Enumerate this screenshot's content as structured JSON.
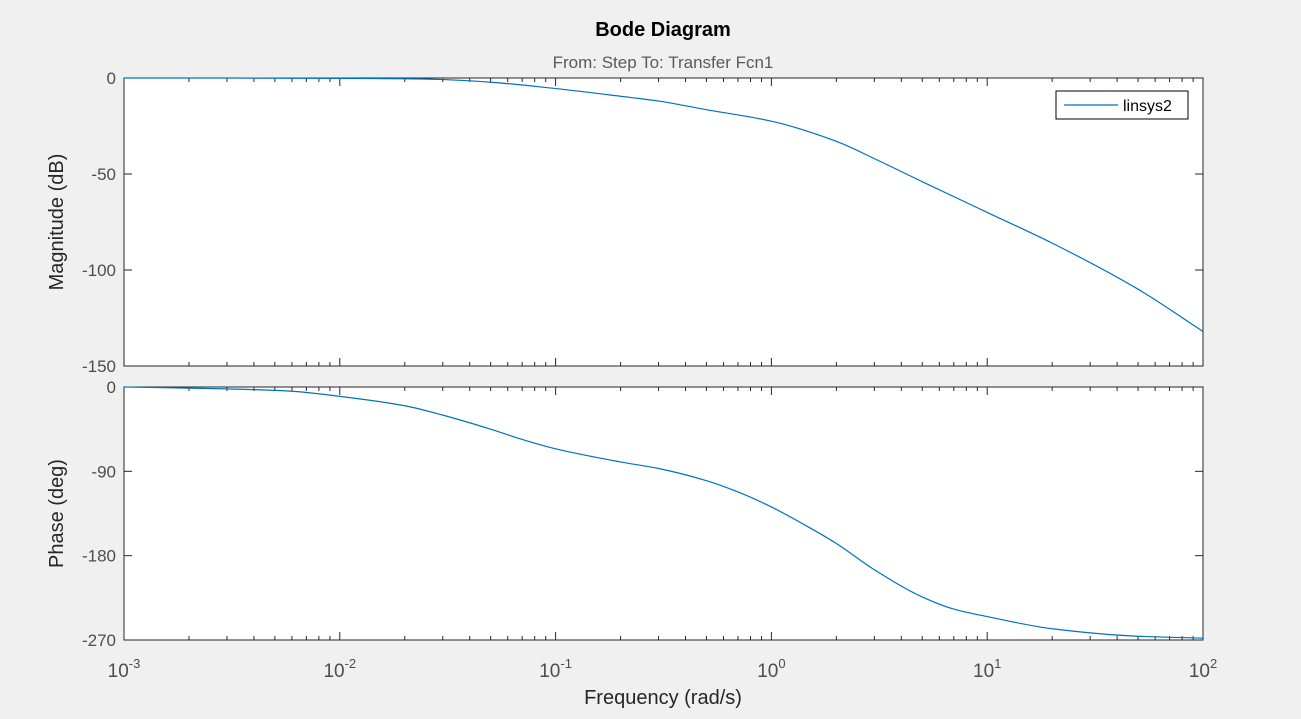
{
  "figure": {
    "title": "Bode Diagram",
    "subtitle": "From: Step  To: Transfer Fcn1",
    "xlabel": "Frequency  (rad/s)"
  },
  "colors": {
    "background": "#f0f0f0",
    "axes_bg": "#ffffff",
    "axis": "#262626",
    "tick_text": "#4d4d4d",
    "line": "#0072bd"
  },
  "chart_data": [
    {
      "type": "line",
      "name": "magnitude",
      "xscale": "log",
      "xlim": [
        0.001,
        100
      ],
      "ylim": [
        -150,
        0
      ],
      "ylabel": "Magnitude (dB)",
      "yticks": [
        0,
        -50,
        -100,
        -150
      ],
      "ytick_labels": [
        "0",
        "-50",
        "-100",
        "-150"
      ],
      "grid": false,
      "legend": {
        "entries": [
          "linsys2"
        ],
        "placement": "top-right"
      },
      "series": [
        {
          "name": "linsys2",
          "x": [
            0.001,
            0.003,
            0.01,
            0.02,
            0.03,
            0.05,
            0.1,
            0.2,
            0.3,
            0.5,
            1,
            2,
            3,
            5,
            10,
            20,
            50,
            100
          ],
          "y": [
            0,
            0,
            -0.2,
            -0.4,
            -0.8,
            -2.2,
            -5.5,
            -9.5,
            -12,
            -16.5,
            -22.5,
            -33,
            -42,
            -54,
            -70,
            -86,
            -110,
            -132
          ]
        }
      ]
    },
    {
      "type": "line",
      "name": "phase",
      "xscale": "log",
      "xlim": [
        0.001,
        100
      ],
      "ylim": [
        -270,
        0
      ],
      "ylabel": "Phase (deg)",
      "yticks": [
        0,
        -90,
        -180,
        -270
      ],
      "ytick_labels": [
        "0",
        "-90",
        "-180",
        "-270"
      ],
      "xticks": [
        0.001,
        0.01,
        0.1,
        1,
        10,
        100
      ],
      "xtick_labels": [
        {
          "base": "10",
          "exp": "-3"
        },
        {
          "base": "10",
          "exp": "-2"
        },
        {
          "base": "10",
          "exp": "-1"
        },
        {
          "base": "10",
          "exp": "0"
        },
        {
          "base": "10",
          "exp": "1"
        },
        {
          "base": "10",
          "exp": "2"
        }
      ],
      "grid": false,
      "series": [
        {
          "name": "linsys2",
          "x": [
            0.001,
            0.003,
            0.006,
            0.01,
            0.02,
            0.03,
            0.05,
            0.07,
            0.1,
            0.2,
            0.3,
            0.5,
            0.7,
            1,
            1.5,
            2,
            3,
            5,
            7,
            10,
            20,
            50,
            100
          ],
          "y": [
            0,
            -2,
            -4.5,
            -10,
            -20,
            -30,
            -45,
            -56,
            -66,
            -80,
            -87,
            -100,
            -112,
            -128,
            -150,
            -167,
            -195,
            -224,
            -237,
            -245,
            -258,
            -266,
            -268
          ]
        }
      ]
    }
  ]
}
